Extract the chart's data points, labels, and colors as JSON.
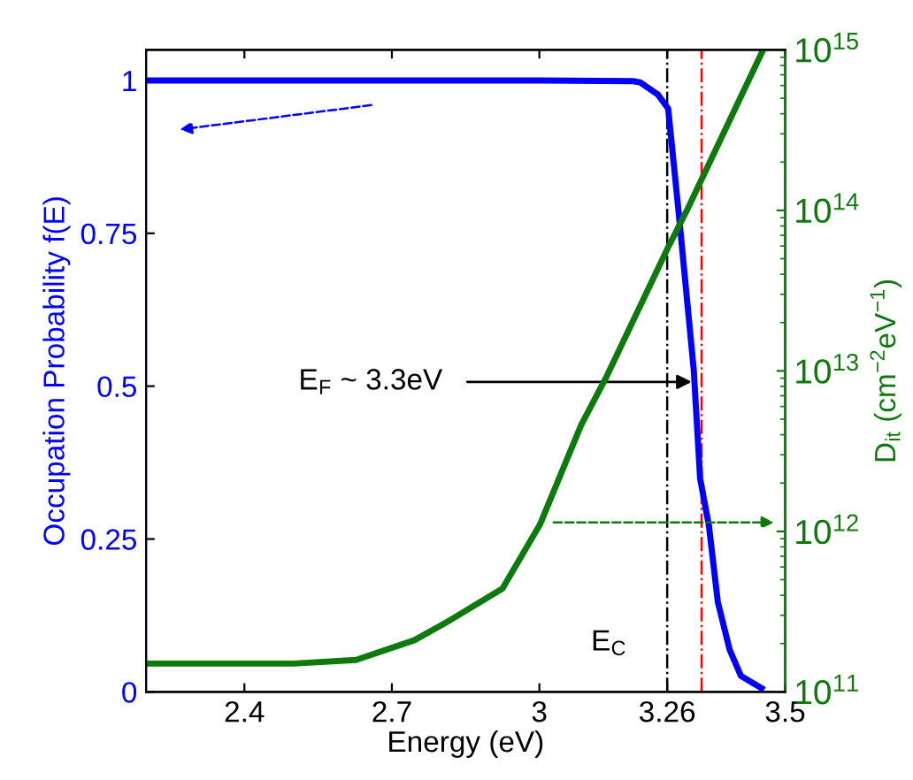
{
  "chart_data": {
    "type": "line",
    "xlabel": "Energy (eV)",
    "ylabel": "Occupation Probability f(E)",
    "y2label": "D$_{it}$ (cm$^{−2}$eV$^{−1}$)",
    "series": [
      {
        "color": "#0000ff",
        "x": [
          2.2,
          2.6,
          3.0,
          3.19,
          3.205,
          3.241,
          3.262,
          3.283,
          3.314,
          3.327,
          3.345,
          3.363,
          3.387,
          3.41,
          3.452
        ],
        "values": [
          1,
          1,
          1,
          0.999,
          0.997,
          0.977,
          0.954,
          0.787,
          0.527,
          0.349,
          0.271,
          0.147,
          0.069,
          0.026,
          0.006
        ]
      },
      {
        "color": "#0e7a0e",
        "axis": "y2",
        "x": [
          2.2,
          2.5,
          2.627,
          2.746,
          2.81,
          2.925,
          3.001,
          3.085,
          3.135,
          3.262,
          3.3,
          3.455
        ],
        "values": [
          150000000000.0,
          150000000000.0,
          158000000000.0,
          210000000000.0,
          270000000000.0,
          440000000000.0,
          1100000000000.0,
          4600000000000.0,
          9000000000000.0,
          59000000000000.0,
          100000000000000.0,
          1000000000000000.0
        ]
      }
    ],
    "xlim": [
      2.2,
      3.5
    ],
    "xticks": [
      2.4,
      2.7,
      3,
      3.26,
      3.5
    ],
    "ylim": [
      0,
      1.05
    ],
    "yticks": [
      0,
      0.25,
      0.5,
      0.75,
      1
    ],
    "log": "y2",
    "y2lim": [
      100000000000.0,
      1000000000000000.0
    ],
    "y2ticks": [
      {
        "value": 100000000000.0,
        "label": "10$^{11}$"
      },
      {
        "value": 1000000000000.0,
        "label": "10$^{12}$"
      },
      {
        "value": 10000000000000.0,
        "label": "10$^{13}$"
      },
      {
        "value": 100000000000000.0,
        "label": "10$^{14}$"
      },
      {
        "value": 1000000000000000.0,
        "label": "10$^{15}$"
      }
    ],
    "ref_lines": [
      {
        "axis": "x",
        "value": 3.26,
        "color": "#000000",
        "line_style": "dashdot"
      },
      {
        "axis": "x",
        "value": 3.33,
        "color": "#ff0000",
        "line_style": "dashdot"
      }
    ],
    "annotations": [
      {
        "text": "E$_{F}$ ~ 3.3eV",
        "x": 3.32,
        "y": 0.507
      },
      {
        "text": "E$_{C}$",
        "x": 3.26,
        "y": 0.08
      }
    ],
    "grid": false,
    "legend": false
  }
}
